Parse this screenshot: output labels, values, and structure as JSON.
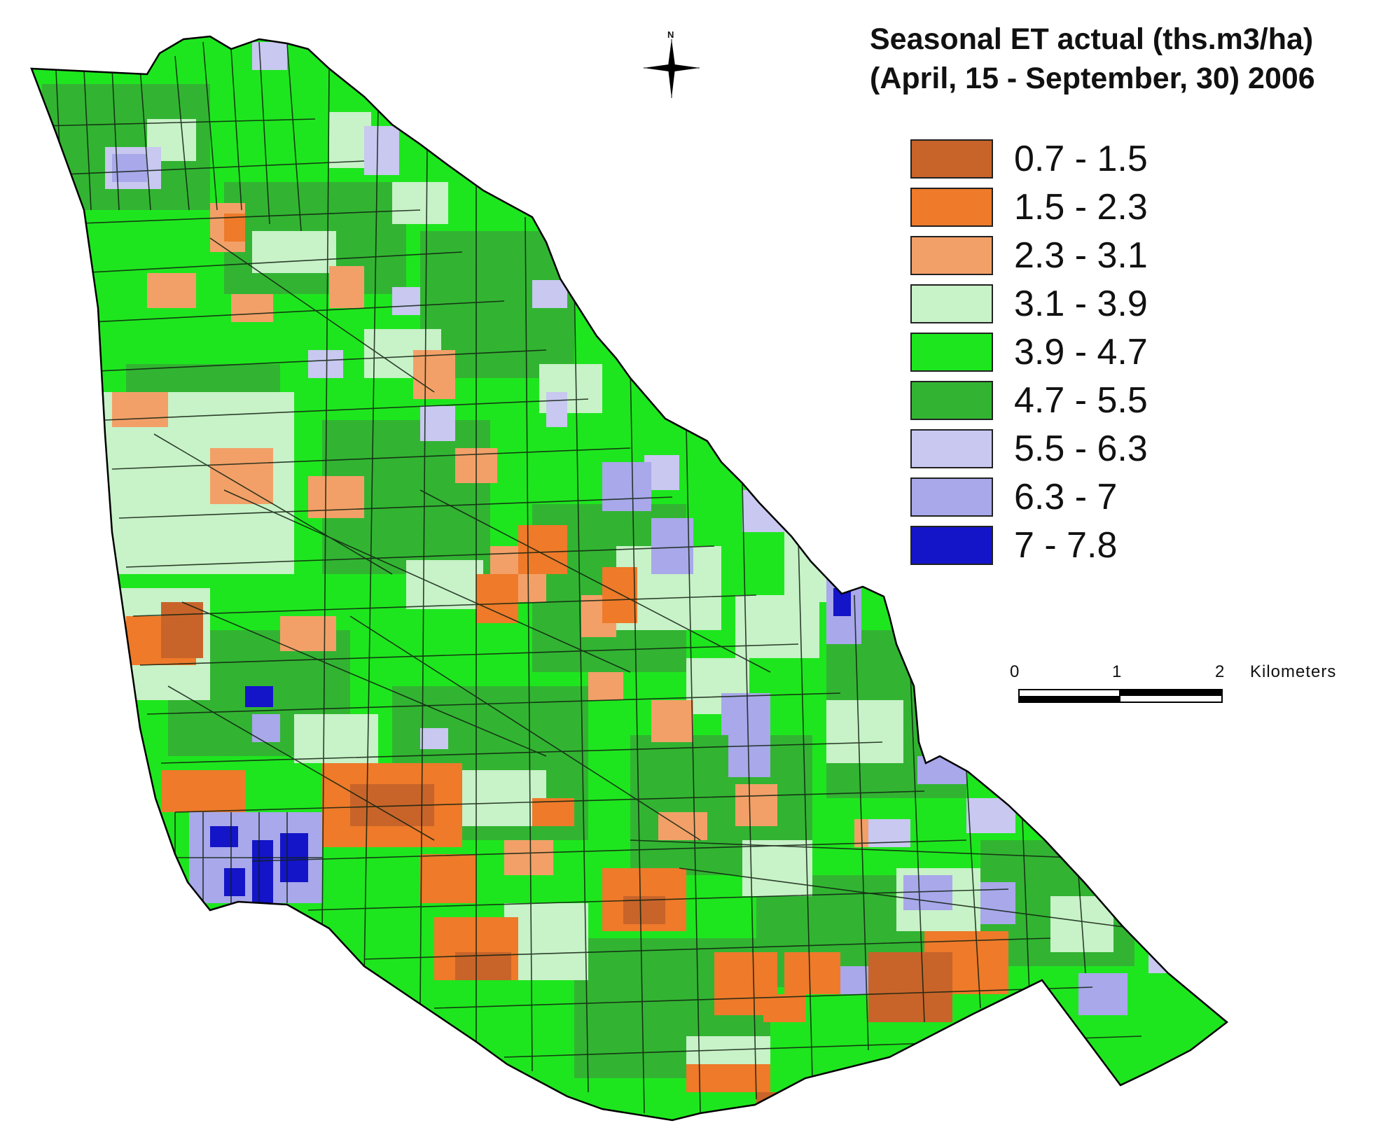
{
  "map": {
    "title_line1": "Seasonal ET actual (ths.m3/ha)",
    "title_line2": "(April, 15 - September, 30) 2006",
    "legend": [
      {
        "label": "0.7 - 1.5",
        "color": "#c8642a"
      },
      {
        "label": "1.5 - 2.3",
        "color": "#ee7a2a"
      },
      {
        "label": "2.3 - 3.1",
        "color": "#f2a068"
      },
      {
        "label": "3.1 - 3.9",
        "color": "#c8f2c8"
      },
      {
        "label": "3.9 - 4.7",
        "color": "#1ee61e"
      },
      {
        "label": "4.7 - 5.5",
        "color": "#32b432"
      },
      {
        "label": "5.5 - 6.3",
        "color": "#c8c8f0"
      },
      {
        "label": "6.3 - 7",
        "color": "#a8a8ea"
      },
      {
        "label": "7 - 7.8",
        "color": "#1414c8"
      }
    ],
    "scale": {
      "ticks": [
        "0",
        "1",
        "2"
      ],
      "units": "Kilometers"
    },
    "north_label": "N"
  }
}
